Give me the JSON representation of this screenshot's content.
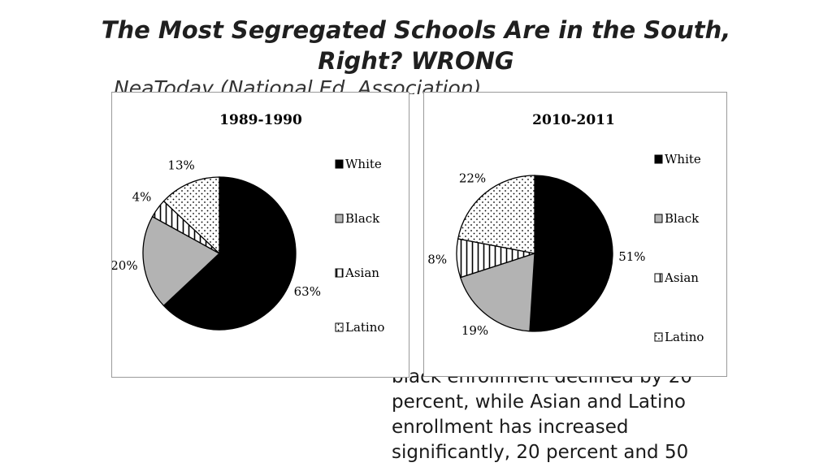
{
  "slide": {
    "title_line1": "The Most Segregated Schools Are in the South,",
    "title_line2": "Right? WRONG",
    "occluded_source": "NeaToday (National Ed. Association)",
    "body_lines": [
      "black enrollment declined by 20",
      "percent, while Asian and Latino",
      "enrollment has increased",
      "significantly, 20 percent and 50"
    ]
  },
  "colors": {
    "White": "#000000",
    "Black": "#b3b3b3",
    "Asian": "#ffffff",
    "Latino": "#ffffff"
  },
  "chart_data": [
    {
      "type": "pie",
      "title": "1989-1990",
      "categories": [
        "White",
        "Black",
        "Asian",
        "Latino"
      ],
      "values": [
        63,
        20,
        4,
        13
      ],
      "labels": [
        "63%",
        "20%",
        "4%",
        "13%"
      ],
      "legend": "right"
    },
    {
      "type": "pie",
      "title": "2010-2011",
      "categories": [
        "White",
        "Black",
        "Asian",
        "Latino"
      ],
      "values": [
        51,
        19,
        8,
        22
      ],
      "labels": [
        "51%",
        "19%",
        "8%",
        "22%"
      ],
      "legend": "right"
    }
  ]
}
